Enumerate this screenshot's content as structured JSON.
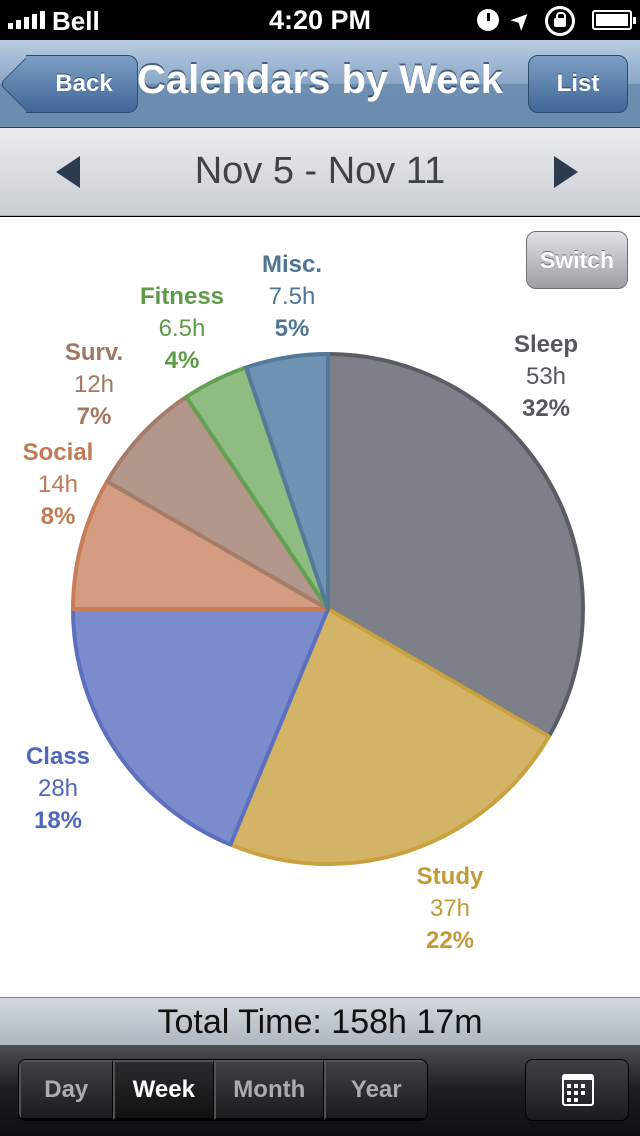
{
  "status_bar": {
    "carrier": "Bell",
    "time": "4:20 PM"
  },
  "nav": {
    "back_label": "Back",
    "title": "Calendars by Week",
    "list_label": "List"
  },
  "date_bar": {
    "range": "Nov 5 - Nov 11"
  },
  "chart": {
    "switch_label": "Switch"
  },
  "chart_data": {
    "type": "pie",
    "slices": [
      {
        "name": "Sleep",
        "hours": "53h",
        "percent_label": "32%",
        "value": 32,
        "fill": "#7d8089",
        "stroke": "#5a5d64",
        "text_color": "#55585f"
      },
      {
        "name": "Study",
        "hours": "37h",
        "percent_label": "22%",
        "value": 22,
        "fill": "#d3b467",
        "stroke": "#c9a13f",
        "text_color": "#c29b36"
      },
      {
        "name": "Class",
        "hours": "28h",
        "percent_label": "18%",
        "value": 18,
        "fill": "#7b8ccc",
        "stroke": "#5c6fc0",
        "text_color": "#5167b9"
      },
      {
        "name": "Social",
        "hours": "14h",
        "percent_label": "8%",
        "value": 8,
        "fill": "#d49d82",
        "stroke": "#c87d59",
        "text_color": "#c27a55"
      },
      {
        "name": "Surv.",
        "hours": "12h",
        "percent_label": "7%",
        "value": 7,
        "fill": "#b3978a",
        "stroke": "#a47c68",
        "text_color": "#a0775f"
      },
      {
        "name": "Fitness",
        "hours": "6.5h",
        "percent_label": "4%",
        "value": 4,
        "fill": "#8fbc80",
        "stroke": "#64a052",
        "text_color": "#5d9b49"
      },
      {
        "name": "Misc.",
        "hours": "7.5h",
        "percent_label": "5%",
        "value": 5,
        "fill": "#6f93b2",
        "stroke": "#55799b",
        "text_color": "#4f7596"
      }
    ]
  },
  "total": {
    "text": "Total Time: 158h 17m"
  },
  "toolbar": {
    "segments": [
      {
        "label": "Day",
        "active": false
      },
      {
        "label": "Week",
        "active": true
      },
      {
        "label": "Month",
        "active": false
      },
      {
        "label": "Year",
        "active": false
      }
    ],
    "calendar_icon": "calendar-icon"
  }
}
